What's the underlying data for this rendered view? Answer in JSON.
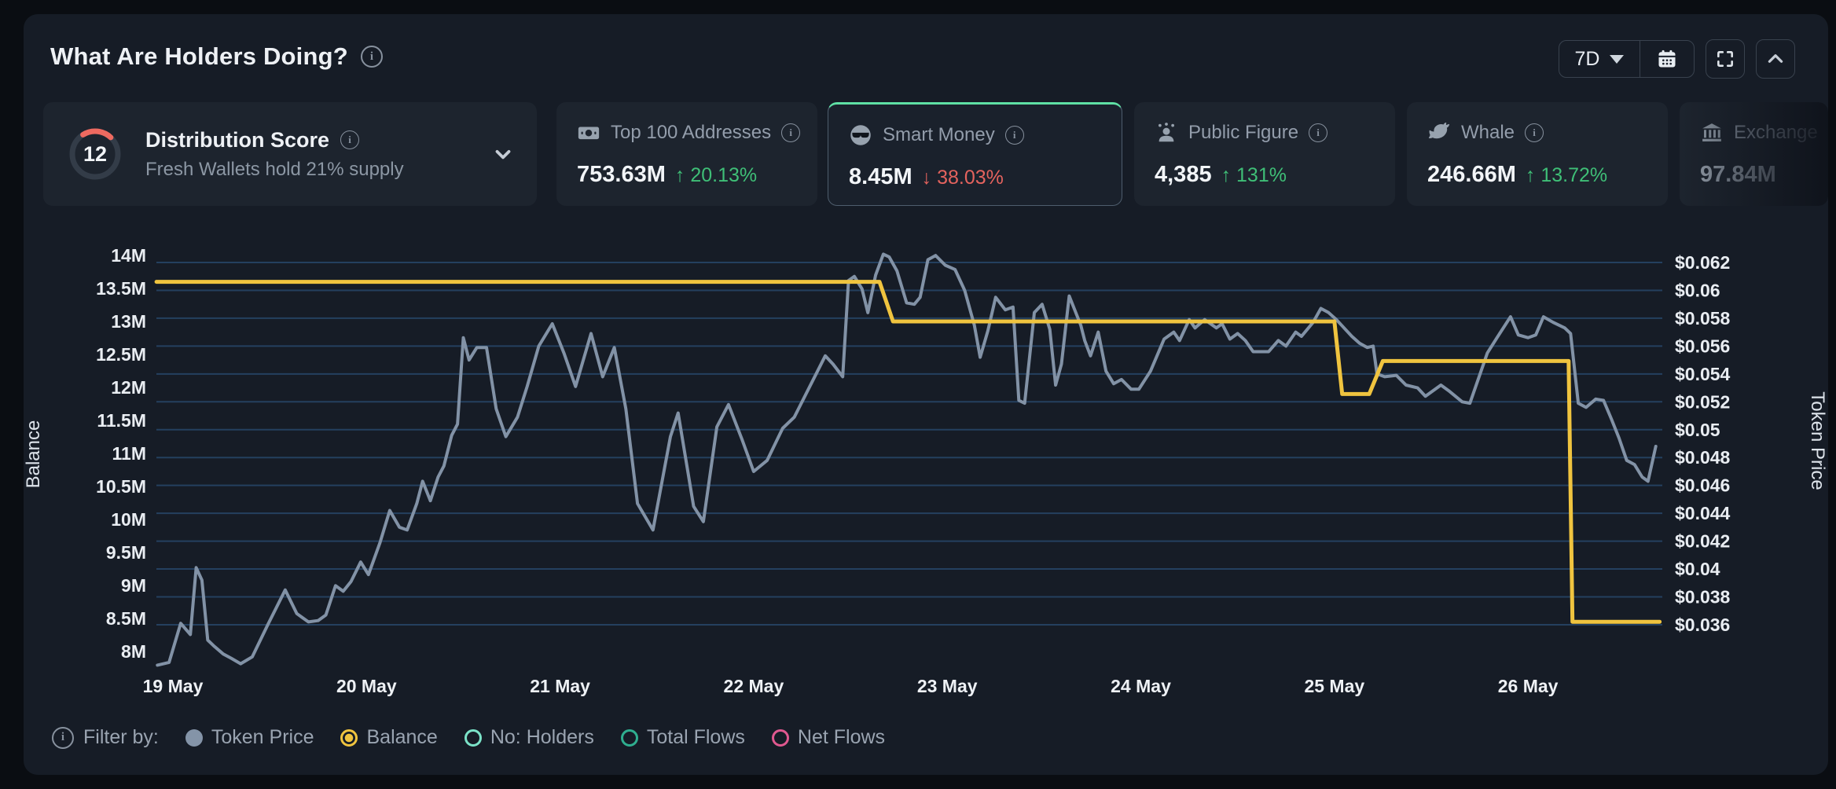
{
  "header": {
    "title": "What Are Holders Doing?",
    "timeframe": "7D"
  },
  "cards": {
    "distribution": {
      "score": "12",
      "title": "Distribution Score",
      "subtitle": "Fresh Wallets hold 21% supply"
    },
    "stats": [
      {
        "id": "top100",
        "icon": "banknote-icon",
        "title": "Top 100 Addresses",
        "value": "753.63M",
        "arrow": "↑",
        "change": "20.13%",
        "direction": "up"
      },
      {
        "id": "smart-money",
        "icon": "smart-money-sunglasses-icon",
        "title": "Smart Money",
        "value": "8.45M",
        "arrow": "↓",
        "change": "38.03%",
        "direction": "down",
        "selected": true
      },
      {
        "id": "public-figure",
        "icon": "public-figure-icon",
        "title": "Public Figure",
        "value": "4,385",
        "arrow": "↑",
        "change": "131%",
        "direction": "up"
      },
      {
        "id": "whale",
        "icon": "whale-icon",
        "title": "Whale",
        "value": "246.66M",
        "arrow": "↑",
        "change": "13.72%",
        "direction": "up"
      },
      {
        "id": "exchange",
        "icon": "bank-icon",
        "title": "Exchange",
        "value": "97.84M",
        "direction": "none",
        "clipped": true
      }
    ]
  },
  "legend": {
    "label": "Filter by:",
    "items": [
      {
        "label": "Token Price",
        "marker": "filled",
        "color": "#8494a8",
        "active": true
      },
      {
        "label": "Balance",
        "marker": "radio",
        "color": "#f0c43f",
        "active": true
      },
      {
        "label": "No: Holders",
        "marker": "ring",
        "color": "#7be3c8",
        "active": false
      },
      {
        "label": "Total Flows",
        "marker": "ring",
        "color": "#2fae8f",
        "active": false
      },
      {
        "label": "Net Flows",
        "marker": "ring",
        "color": "#e0588f",
        "active": false
      }
    ]
  },
  "chart_data": {
    "type": "line",
    "x_categories": [
      "19 May",
      "20 May",
      "21 May",
      "22 May",
      "23 May",
      "24 May",
      "25 May",
      "26 May"
    ],
    "grid": true,
    "left_axis": {
      "label": "Balance",
      "min": 8,
      "max": 14,
      "ticks": [
        "14M",
        "13.5M",
        "13M",
        "12.5M",
        "12M",
        "11.5M",
        "11M",
        "10.5M",
        "10M",
        "9.5M",
        "9M",
        "8.5M",
        "8M"
      ]
    },
    "right_axis": {
      "label": "Token Price",
      "min": 0.036,
      "max": 0.062,
      "ticks": [
        "$0.062",
        "$0.06",
        "$0.058",
        "$0.056",
        "$0.054",
        "$0.052",
        "$0.05",
        "$0.048",
        "$0.046",
        "$0.044",
        "$0.042",
        "$0.04",
        "$0.038",
        "$0.036"
      ]
    },
    "series": [
      {
        "name": "Token Price",
        "axis": "right",
        "color": "#8292a6",
        "width": 4,
        "points": [
          [
            -0.08,
            0.0331
          ],
          [
            -0.02,
            0.0333
          ],
          [
            0.04,
            0.0361
          ],
          [
            0.09,
            0.0353
          ],
          [
            0.12,
            0.0401
          ],
          [
            0.15,
            0.0392
          ],
          [
            0.18,
            0.0349
          ],
          [
            0.21,
            0.0345
          ],
          [
            0.26,
            0.0339
          ],
          [
            0.3,
            0.0336
          ],
          [
            0.35,
            0.0332
          ],
          [
            0.41,
            0.0337
          ],
          [
            0.49,
            0.036
          ],
          [
            0.58,
            0.0385
          ],
          [
            0.64,
            0.0368
          ],
          [
            0.7,
            0.0362
          ],
          [
            0.75,
            0.0363
          ],
          [
            0.79,
            0.0367
          ],
          [
            0.84,
            0.0388
          ],
          [
            0.88,
            0.0384
          ],
          [
            0.92,
            0.0391
          ],
          [
            0.97,
            0.0405
          ],
          [
            1.01,
            0.0396
          ],
          [
            1.07,
            0.0419
          ],
          [
            1.12,
            0.0442
          ],
          [
            1.17,
            0.043
          ],
          [
            1.21,
            0.0428
          ],
          [
            1.26,
            0.0447
          ],
          [
            1.29,
            0.0463
          ],
          [
            1.33,
            0.0449
          ],
          [
            1.37,
            0.0466
          ],
          [
            1.4,
            0.0474
          ],
          [
            1.44,
            0.0496
          ],
          [
            1.47,
            0.0504
          ],
          [
            1.5,
            0.0566
          ],
          [
            1.53,
            0.055
          ],
          [
            1.57,
            0.0559
          ],
          [
            1.62,
            0.0559
          ],
          [
            1.67,
            0.0515
          ],
          [
            1.72,
            0.0495
          ],
          [
            1.78,
            0.0509
          ],
          [
            1.83,
            0.0531
          ],
          [
            1.89,
            0.056
          ],
          [
            1.96,
            0.0576
          ],
          [
            2.02,
            0.0555
          ],
          [
            2.08,
            0.0531
          ],
          [
            2.16,
            0.0569
          ],
          [
            2.22,
            0.0538
          ],
          [
            2.28,
            0.0559
          ],
          [
            2.34,
            0.0515
          ],
          [
            2.4,
            0.0447
          ],
          [
            2.48,
            0.0428
          ],
          [
            2.57,
            0.0495
          ],
          [
            2.61,
            0.0512
          ],
          [
            2.69,
            0.0445
          ],
          [
            2.74,
            0.0434
          ],
          [
            2.81,
            0.0502
          ],
          [
            2.87,
            0.0518
          ],
          [
            2.94,
            0.0493
          ],
          [
            3.0,
            0.047
          ],
          [
            3.07,
            0.0478
          ],
          [
            3.15,
            0.0501
          ],
          [
            3.21,
            0.0509
          ],
          [
            3.37,
            0.0553
          ],
          [
            3.41,
            0.0547
          ],
          [
            3.46,
            0.0538
          ],
          [
            3.49,
            0.0607
          ],
          [
            3.52,
            0.061
          ],
          [
            3.56,
            0.0601
          ],
          [
            3.59,
            0.0584
          ],
          [
            3.63,
            0.0611
          ],
          [
            3.67,
            0.0626
          ],
          [
            3.7,
            0.0624
          ],
          [
            3.74,
            0.0614
          ],
          [
            3.79,
            0.0591
          ],
          [
            3.83,
            0.059
          ],
          [
            3.86,
            0.0595
          ],
          [
            3.9,
            0.0622
          ],
          [
            3.94,
            0.0625
          ],
          [
            3.99,
            0.0618
          ],
          [
            4.04,
            0.0615
          ],
          [
            4.09,
            0.06
          ],
          [
            4.14,
            0.0575
          ],
          [
            4.17,
            0.0552
          ],
          [
            4.21,
            0.0571
          ],
          [
            4.25,
            0.0595
          ],
          [
            4.3,
            0.0586
          ],
          [
            4.34,
            0.0588
          ],
          [
            4.37,
            0.0521
          ],
          [
            4.4,
            0.0519
          ],
          [
            4.45,
            0.0584
          ],
          [
            4.49,
            0.059
          ],
          [
            4.53,
            0.0572
          ],
          [
            4.56,
            0.0532
          ],
          [
            4.59,
            0.0547
          ],
          [
            4.63,
            0.0596
          ],
          [
            4.69,
            0.0575
          ],
          [
            4.71,
            0.0564
          ],
          [
            4.74,
            0.0553
          ],
          [
            4.78,
            0.057
          ],
          [
            4.82,
            0.0542
          ],
          [
            4.86,
            0.0533
          ],
          [
            4.9,
            0.0536
          ],
          [
            4.95,
            0.0529
          ],
          [
            4.99,
            0.0529
          ],
          [
            5.05,
            0.0542
          ],
          [
            5.12,
            0.0565
          ],
          [
            5.17,
            0.057
          ],
          [
            5.2,
            0.0564
          ],
          [
            5.25,
            0.0579
          ],
          [
            5.28,
            0.0573
          ],
          [
            5.33,
            0.0579
          ],
          [
            5.39,
            0.0573
          ],
          [
            5.42,
            0.0576
          ],
          [
            5.46,
            0.0565
          ],
          [
            5.5,
            0.0569
          ],
          [
            5.54,
            0.0564
          ],
          [
            5.58,
            0.0556
          ],
          [
            5.66,
            0.0556
          ],
          [
            5.71,
            0.0564
          ],
          [
            5.75,
            0.056
          ],
          [
            5.8,
            0.057
          ],
          [
            5.83,
            0.0567
          ],
          [
            5.89,
            0.0577
          ],
          [
            5.93,
            0.0587
          ],
          [
            5.97,
            0.0584
          ],
          [
            6.01,
            0.0579
          ],
          [
            6.05,
            0.0573
          ],
          [
            6.09,
            0.0567
          ],
          [
            6.13,
            0.0562
          ],
          [
            6.17,
            0.0559
          ],
          [
            6.2,
            0.056
          ],
          [
            6.22,
            0.054
          ],
          [
            6.26,
            0.0538
          ],
          [
            6.32,
            0.0539
          ],
          [
            6.37,
            0.0532
          ],
          [
            6.43,
            0.053
          ],
          [
            6.47,
            0.0524
          ],
          [
            6.55,
            0.0532
          ],
          [
            6.59,
            0.0528
          ],
          [
            6.66,
            0.052
          ],
          [
            6.7,
            0.0519
          ],
          [
            6.79,
            0.0555
          ],
          [
            6.84,
            0.0566
          ],
          [
            6.91,
            0.0581
          ],
          [
            6.95,
            0.0568
          ],
          [
            7.0,
            0.0566
          ],
          [
            7.04,
            0.0568
          ],
          [
            7.08,
            0.0581
          ],
          [
            7.13,
            0.0577
          ],
          [
            7.19,
            0.0573
          ],
          [
            7.22,
            0.0569
          ],
          [
            7.26,
            0.0519
          ],
          [
            7.3,
            0.0516
          ],
          [
            7.35,
            0.0522
          ],
          [
            7.39,
            0.0521
          ],
          [
            7.43,
            0.0508
          ],
          [
            7.47,
            0.0494
          ],
          [
            7.51,
            0.0478
          ],
          [
            7.55,
            0.0475
          ],
          [
            7.59,
            0.0466
          ],
          [
            7.62,
            0.0463
          ],
          [
            7.66,
            0.0488
          ]
        ]
      },
      {
        "name": "Balance",
        "axis": "left",
        "color": "#f0c43f",
        "width": 5,
        "points": [
          [
            -0.085,
            13.6
          ],
          [
            3.65,
            13.6
          ],
          [
            3.72,
            13.0
          ],
          [
            6.0,
            13.0
          ],
          [
            6.04,
            11.9
          ],
          [
            6.18,
            11.9
          ],
          [
            6.25,
            12.4
          ],
          [
            7.21,
            12.4
          ],
          [
            7.23,
            8.45
          ],
          [
            7.68,
            8.45
          ]
        ]
      }
    ],
    "gauge": {
      "value": 12,
      "max": 100,
      "color": "#ee6a60",
      "track": "#333c48"
    }
  }
}
